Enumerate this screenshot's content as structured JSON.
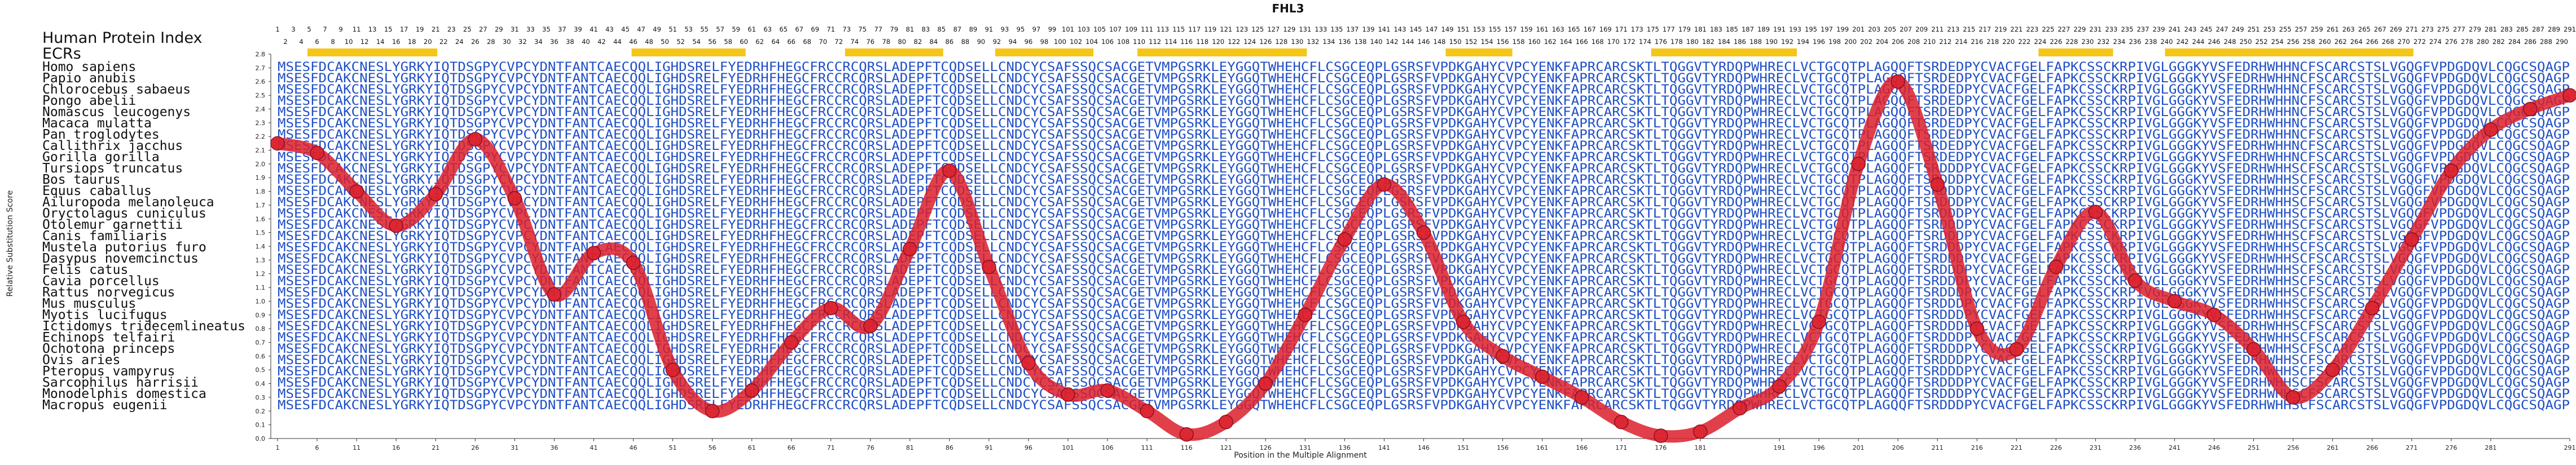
{
  "chart_data": {
    "type": "line",
    "title": "FHL3",
    "xlabel": "Position in the Multiple Alignment",
    "ylabel": "Relative Substitution Score",
    "xlim": [
      1,
      291
    ],
    "ylim": [
      0,
      2.8
    ],
    "yticks": [
      "0.0",
      "0.1",
      "0.2",
      "0.3",
      "0.4",
      "0.5",
      "0.6",
      "0.7",
      "0.8",
      "0.9",
      "1.0",
      "1.1",
      "1.2",
      "1.3",
      "1.4",
      "1.5",
      "1.6",
      "1.7",
      "1.8",
      "1.9",
      "2.0",
      "2.1",
      "2.2",
      "2.3",
      "2.4",
      "2.5",
      "2.6",
      "2.7",
      "2.8"
    ],
    "xticks": [
      "1",
      "6",
      "11",
      "16",
      "21",
      "26",
      "31",
      "36",
      "41",
      "46",
      "51",
      "56",
      "61",
      "66",
      "71",
      "76",
      "81",
      "86",
      "91",
      "96",
      "101",
      "106",
      "111",
      "116",
      "121",
      "126",
      "131",
      "136",
      "141",
      "146",
      "151",
      "156",
      "161",
      "166",
      "171",
      "176",
      "181",
      "191",
      "196",
      "201",
      "206",
      "211",
      "216",
      "221",
      "226",
      "231",
      "236",
      "241",
      "246",
      "251",
      "256",
      "261",
      "266",
      "271",
      "276",
      "281",
      "291"
    ],
    "header_label": "Human Protein Index",
    "ecr_label": "ECRs",
    "species": [
      "Homo sapiens",
      "Papio anubis",
      "Chlorocebus sabaeus",
      "Pongo abelii",
      "Nomascus leucogenys",
      "Macaca mulatta",
      "Pan troglodytes",
      "Callithrix jacchus",
      "Gorilla gorilla",
      "Tursiops truncatus",
      "Bos taurus",
      "Equus caballus",
      "Ailuropoda melanoleuca",
      "Oryctolagus cuniculus",
      "Otolemur garnettii",
      "Canis familiaris",
      "Mustela putorius furo",
      "Dasypus novemcinctus",
      "Felis catus",
      "Cavia porcellus",
      "Rattus norvegicus",
      "Mus musculus",
      "Myotis lucifugus",
      "Ictidomys tridecemlineatus",
      "Echinops telfairi",
      "Ochotona princeps",
      "Ovis aries",
      "Pteropus vampyrus",
      "Sarcophilus harrisii",
      "Monodelphis domestica",
      "Macropus eugenii"
    ],
    "sequences": [
      "MSESFDCAKCNESLYGRKYIQTDSGPYCVPCYDNTFANTCAECQQLIGHDSRELFYEDRHFHEGCFRCCRCQRSLADEPFTCQDSELLCNDCYCSAFSSQCSACGETVMPGSRKLEYGGQTWHEHCFLCSGCEQPLGSRSFVPDKGAHYCVPCYENKFAPRCARCSKTLTQGGVTYRDQPWHRECLVCTGCQTPLAGQQFTSRDEDPYCVACFGELFAPKCSSCKRPIVGLGGGKYVSFEDRHWHHNCFSCARCSTSLVGQGFVPDGDQVLCQGCSQAGP",
      "MSESFDCAKCNESLYGRKYIQTDSGPYCVPCYDNTFANTCAECQQLIGHDSRELFYEDRHFHEGCFRCCRCQRSLADEPFTCQDSELLCNDCYCSAFSSQCSACGETVMPGSRKLEYGGQTWHEHCFLCSGCEQPLGSRSFVPDKGAHYCVPCYENKFAPRCARCSKTLTQGGVTYRDQPWHRECLVCTGCQTPLAGQQFTSRDEDPYCVACFGELFAPKCSSCKRPIVGLGGGKYVSFEDRHWHHNCFSCARCSTSLVGQGFVPDGDQVLCQGCSQAGP",
      "MSESFDCAKCNESLYGRKYIQTDSGPYCVPCYDNTFANTCAECQQLIGHDSRELFYEDRHFHEGCFRCCRCQRSLADEPFTCQDSELLCNDCYCSAFSSQCSACGETVMPGSRKLEYGGQTWHEHCFLCSGCEQPLGSRSFVPDKGAHYCVPCYENKFAPRCARCSKTLTQGGVTYRDQPWHRECLVCTGCQTPLAGQQFTSRDEDPYCVACFGELFAPKCSSCKRPIVGLGGGKYVSFEDRHWHHNCFSCARCSTSLVGQGFVPDGDQVLCQGCSQAGP",
      "MSESFDCAKCNESLYGRKYIQTDSGPYCVPCYDNTFANTCAECQQLIGHDSRELFYEDRHFHEGCFRCCRCQRSLADEPFTCQDSELLCNDCYCSAFSSQCSACGETVMPGSRKLEYGGQTWHEHCFLCSGCEQPLGSRSFVPDKGAHYCVPCYENKFAPRCARCSKTLTQGGVTYRDQPWHRECLVCTGCQTPLAGQQFTSRDEDPYCVACFGELFAPKCSSCKRPIVGLGGGKYVSFEDRHWHHNCFSCARCSTSLVGQGFVPDGDQVLCQGCSQAGP",
      "MSESFDCAKCNESLYGRKYIQTDSGPYCVPCYDNTFANTCAECQQLIGHDSRELFYEDRHFHEGCFRCCRCQRSLADEPFTCQDSELLCNDCYCSAFSSQCSACGETVMPGSRKLEYGGQTWHEHCFLCSGCEQPLGSRSFVPDKGAHYCVPCYENKFAPRCARCSKTLTQGGVTYRDQPWHRECLVCTGCQTPLAGQQFTSRDEDPYCVACFGELFAPKCSSCKRPIVGLGGGKYVSFEDRHWHHNCFSCARCSTSLVGQGFVPDGDQVLCQGCSQAGP",
      "MSESFDCAKCNESLYGRKYIQTDSGPYCVPCYDNTFANTCAECQQLIGHDSRELFYEDRHFHEGCFRCCRCQRSLADEPFTCQDSELLCNDCYCSAFSSQCSACGETVMPGSRKLEYGGQTWHEHCFLCSGCEQPLGSRSFVPDKGAHYCVPCYENKFAPRCARCSKTLTQGGVTYRDQPWHRECLVCTGCQTPLAGQQFTSRDEDPYCVACFGELFAPKCSSCKRPIVGLGGGKYVSFEDRHWHHNCFSCARCSTSLVGQGFVPDGDQVLCQGCSQAGP",
      "MSESFDCAKCNESLYGRKYIQTDSGPYCVPCYDNTFANTCAECQQLIGHDSRELFYEDRHFHEGCFRCCRCQRSLADEPFTCQDSELLCNDCYCSAFSSQCSACGETVMPGSRKLEYGGQTWHEHCFLCSGCEQPLGSRSFVPDKGAHYCVPCYENKFAPRCARCSKTLTQGGVTYRDQPWHRECLVCTGCQTPLAGQQFTSRDEDPYCVACFGELFAPKCSSCKRPIVGLGGGKYVSFEDRHWHHNCFSCARCSTSLVGQGFVPDGDQVLCQGCSQAGP",
      "MSESFDCAKCNESLYGRKYIQTDSGPYCVPCYDNTFANTCAECQQLIGHDSRELFYEDRHFHEGCFRCCRCQRSLADEPFTCQDSELLCNDCYCSAFSSQCSACGETVMPGSRKLEYGGQTWHEHCFLCSGCEQPLGSRSFVPDKGAHYCVPCYENKFAPRCARCSKTLTQGGVTYRDQPWHRECLVCTGCQTPLAGQQFTSRDEDPYCVACFGELFAPKCSSCKRPIVGLGGGKYVSFEDRHWHHNCFSCARCSTSLVGQGFVPDGDQVLCQGCSQAGP",
      "MSESFDCAKCNESLYGRKYIQTDSGPYCVPCYDNTFANTCAECQQLIGHDSRELFYEDRHFHEGCFRCCRCQRSLADEPFTCQDSELLCNDCYCSAFSSQCSACGETVMPGSRKLEYGGQTWHEHCFLCSGCEQPLGSRSFVPDKGAHYCVPCYENKFAPRCARCSKTLTQGGVTYRDQPWHRECLVCTGCQTPLAGQQFTSRDEDPYCVACFGELFAPKCSSCKRPIVGLGGGKYVSFEDRHWHHNCFSCARCSTSLVGQGFVPDGDQVLCQGCSQAGP",
      "MSESFDCAKCNESLYGRKYIQTDSGPYCVPCYDNTFANTCAECQQLIGHDSRELFYEDRHFHEGCFRCCRCQRSLADEPFTCQDSELLCNDCYCSAFSSQCSACGETVMPGSRKLEYGGQTWHEHCFLCSGCEQPLGSRSFVPDKGAHYCVPCYENKFAPRCARCSKTLTQGGVTYRDQPWHRECLVCTGCQTPLAGQQFTSRDDDPYCVACFGELFAPKCSSCKRPIVGLGGGKYVSFEDRHWHHSCFSCARCSTSLVGQGFVPDGDQVLCQGCSQAGP",
      "MSESFDCAKCNESLYGRKYIQTDSGPYCVPCYDNTFANTCAECQQLIGHDSRELFYEDRHFHEGCFRCCRCQRSLADEPFTCQDSELLCNDCYCSAFSSQCSACGETVMPGSRKLEYGGQTWHEHCFLCSGCEQPLGSRSFVPDKGAHYCVPCYENKFAPRCARCSKTLTQGGVTYRDQPWHRECLVCTGCQTPLAGQQFTSRDDDPYCVACFGELFAPKCSSCKRPIVGLGGGKYVSFEDRHWHHSCFSCARCSTSLVGQGFVPDGDQVLCQGCSQAGP",
      "MSESFDCAKCNESLYGRKYIQTDSGPYCVPCYDNTFANTCAECQQLIGHDSRELFYEDRHFHEGCFRCCRCQRSLADEPFTCQDSELLCNDCYCSAFSSQCSACGETVMPGSRKLEYGGQTWHEHCFLCSGCEQPLGSRSFVPDKGAHYCVPCYENKFAPRCARCSKTLTQGGVTYRDQPWHRECLVCTGCQTPLAGQQFTSRDDDPYCVACFGELFAPKCSSCKRPIVGLGGGKYVSFEDRHWHHSCFSCARCSTSLVGQGFVPDGDQVLCQGCSQAGP",
      "MSESFDCAKCNESLYGRKYIQTDSGPYCVPCYDNTFANTCAECQQLIGHDSRELFYEDRHFHEGCFRCCRCQRSLADEPFTCQDSELLCNDCYCSAFSSQCSACGETVMPGSRKLEYGGQTWHEHCFLCSGCEQPLGSRSFVPDKGAHYCVPCYENKFAPRCARCSKTLTQGGVTYRDQPWHRECLVCTGCQTPLAGQQFTSRDDDPYCVACFGELFAPKCSSCKRPIVGLGGGKYVSFEDRHWHHSCFSCARCSTSLVGQGFVPDGDQVLCQGCSQAGP",
      "MSESFDCAKCNESLYGRKYIQTDSGPYCVPCYDNTFANTCAECQQLIGHDSRELFYEDRHFHEGCFRCCRCQRSLADEPFTCQDSELLCNDCYCSAFSSQCSACGETVMPGSRKLEYGGQTWHEHCFLCSGCEQPLGSRSFVPDKGAHYCVPCYENKFAPRCARCSKTLTQGGVTYRDQPWHRECLVCTGCQTPLAGQQFTSRDDDPYCVACFGELFAPKCSSCKRPIVGLGGGKYVSFEDRHWHHSCFSCARCSTSLVGQGFVPDGDQVLCQGCSQAGP",
      "MSESFDCAKCNESLYGRKYIQTDSGPYCVPCYDNTFANTCAECQQLIGHDSRELFYEDRHFHEGCFRCCRCQRSLADEPFTCQDSELLCNDCYCSAFSSQCSACGETVMPGSRKLEYGGQTWHEHCFLCSGCEQPLGSRSFVPDKGAHYCVPCYENKFAPRCARCSKTLTQGGVTYRDQPWHRECLVCTGCQTPLAGQQFTSRDDDPYCVACFGELFAPKCSSCKRPIVGLGGGKYVSFEDRHWHHSCFSCARCSTSLVGQGFVPDGDQVLCQGCSQAGP",
      "MSESFDCAKCNESLYGRKYIQTDSGPYCVPCYDNTFANTCAECQQLIGHDSRELFYEDRHFHEGCFRCCRCQRSLADEPFTCQDSELLCNDCYCSAFSSQCSACGETVMPGSRKLEYGGQTWHEHCFLCSGCEQPLGSRSFVPDKGAHYCVPCYENKFAPRCARCSKTLTQGGVTYRDQPWHRECLVCTGCQTPLAGQQFTSRDDDPYCVACFGELFAPKCSSCKRPIVGLGGGKYVSFEDRHWHHSCFSCARCSTSLVGQGFVPDGDQVLCQGCSQAGP",
      "MSESFDCAKCNESLYGRKYIQTDSGPYCVPCYDNTFANTCAECQQLIGHDSRELFYEDRHFHEGCFRCCRCQRSLADEPFTCQDSELLCNDCYCSAFSSQCSACGETVMPGSRKLEYGGQTWHEHCFLCSGCEQPLGSRSFVPDKGAHYCVPCYENKFAPRCARCSKTLTQGGVTYRDQPWHRECLVCTGCQTPLAGQQFTSRDDDPYCVACFGELFAPKCSSCKRPIVGLGGGKYVSFEDRHWHHSCFSCARCSTSLVGQGFVPDGDQVLCQGCSQAGP",
      "MSESFDCAKCNESLYGRKYIQTDSGPYCVPCYDNTFANTCAECQQLIGHDSRELFYEDRHFHEGCFRCCRCQRSLADEPFTCQDSELLCNDCYCSAFSSQCSACGETVMPGSRKLEYGGQTWHEHCFLCSGCEQPLGSRSFVPDKGAHYCVPCYENKFAPRCARCSKTLTQGGVTYRDQPWHRECLVCTGCQTPLAGQQFTSRDDDPYCVACFGELFAPKCSSCKRPIVGLGGGKYVSFEDRHWHHSCFSCARCSTSLVGQGFVPDGDQVLCQGCSQAGP",
      "MSESFDCAKCNESLYGRKYIQTDSGPYCVPCYDNTFANTCAECQQLIGHDSRELFYEDRHFHEGCFRCCRCQRSLADEPFTCQDSELLCNDCYCSAFSSQCSACGETVMPGSRKLEYGGQTWHEHCFLCSGCEQPLGSRSFVPDKGAHYCVPCYENKFAPRCARCSKTLTQGGVTYRDQPWHRECLVCTGCQTPLAGQQFTSRDDDPYCVACFGELFAPKCSSCKRPIVGLGGGKYVSFEDRHWHHSCFSCARCSTSLVGQGFVPDGDQVLCQGCSQAGP",
      "MSESFDCAKCNESLYGRKYIQTDSGPYCVPCYDNTFANTCAECQQLIGHDSRELFYEDRHFHEGCFRCCRCQRSLADEPFTCQDSELLCNDCYCSAFSSQCSACGETVMPGSRKLEYGGQTWHEHCFLCSGCEQPLGSRSFVPDKGAHYCVPCYENKFAPRCARCSKTLTQGGVTYRDQPWHRECLVCTGCQTPLAGQQFTSRDDDPYCVACFGELFAPKCSSCKRPIVGLGGGKYVSFEDRHWHHSCFSCARCSTSLVGQGFVPDGDQVLCQGCSQAGP",
      "MSESFDCAKCNESLYGRKYIQTDSGPYCVPCYDNTFANTCAECQQLIGHDSRELFYEDRHFHEGCFRCCRCQRSLADEPFTCQDSELLCNDCYCSAFSSQCSACGETVMPGSRKLEYGGQTWHEHCFLCSGCEQPLGSRSFVPDKGAHYCVPCYENKFAPRCARCSKTLTQGGVTYRDQPWHRECLVCTGCQTPLAGQQFTSRDDDPYCVACFGELFAPKCSSCKRPIVGLGGGKYVSFEDRHWHHSCFSCARCSTSLVGQGFVPDGDQVLCQGCSQAGP",
      "MSESFDCAKCNESLYGRKYIQTDSGPYCVPCYDNTFANTCAECQQLIGHDSRELFYEDRHFHEGCFRCCRCQRSLADEPFTCQDSELLCNDCYCSAFSSQCSACGETVMPGSRKLEYGGQTWHEHCFLCSGCEQPLGSRSFVPDKGAHYCVPCYENKFAPRCARCSKTLTQGGVTYRDQPWHRECLVCTGCQTPLAGQQFTSRDDDPYCVACFGELFAPKCSSCKRPIVGLGGGKYVSFEDRHWHHSCFSCARCSTSLVGQGFVPDGDQVLCQGCSQAGP",
      "MSESFDCAKCNESLYGRKYIQTDSGPYCVPCYDNTFANTCAECQQLIGHDSRELFYEDRHFHEGCFRCCRCQRSLADEPFTCQDSELLCNDCYCSAFSSQCSACGETVMPGSRKLEYGGQTWHEHCFLCSGCEQPLGSRSFVPDKGAHYCVPCYENKFAPRCARCSKTLTQGGVTYRDQPWHRECLVCTGCQTPLAGQQFTSRDDDPYCVACFGELFAPKCSSCKRPIVGLGGGKYVSFEDRHWHHSCFSCARCSTSLVGQGFVPDGDQVLCQGCSQAGP",
      "MSESFDCAKCNESLYGRKYIQTDSGPYCVPCYDNTFANTCAECQQLIGHDSRELFYEDRHFHEGCFRCCRCQRSLADEPFTCQDSELLCNDCYCSAFSSQCSACGETVMPGSRKLEYGGQTWHEHCFLCSGCEQPLGSRSFVPDKGAHYCVPCYENKFAPRCARCSKTLTQGGVTYRDQPWHRECLVCTGCQTPLAGQQFTSRDDDPYCVACFGELFAPKCSSCKRPIVGLGGGKYVSFEDRHWHHSCFSCARCSTSLVGQGFVPDGDQVLCQGCSQAGP",
      "MSESFDCAKCNESLYGRKYIQTDSGPYCVPCYDNTFANTCAECQQLIGHDSRELFYEDRHFHEGCFRCCRCQRSLADEPFTCQDSELLCNDCYCSAFSSQCSACGETVMPGSRKLEYGGQTWHEHCFLCSGCEQPLGSRSFVPDKGAHYCVPCYENKFAPRCARCSKTLTQGGVTYRDQPWHRECLVCTGCQTPLAGQQFTSRDDDPYCVACFGELFAPKCSSCKRPIVGLGGGKYVSFEDRHWHHSCFSCARCSTSLVGQGFVPDGDQVLCQGCSQAGP",
      "MSESFDCAKCNESLYGRKYIQTDSGPYCVPCYDNTFANTCAECQQLIGHDSRELFYEDRHFHEGCFRCCRCQRSLADEPFTCQDSELLCNDCYCSAFSSQCSACGETVMPGSRKLEYGGQTWHEHCFLCSGCEQPLGSRSFVPDKGAHYCVPCYENKFAPRCARCSKTLTQGGVTYRDQPWHRECLVCTGCQTPLAGQQFTSRDDDPYCVACFGELFAPKCSSCKRPIVGLGGGKYVSFEDRHWHHSCFSCARCSTSLVGQGFVPDGDQVLCQGCSQAGP",
      "MSESFDCAKCNESLYGRKYIQTDSGPYCVPCYDNTFANTCAECQQLIGHDSRELFYEDRHFHEGCFRCCRCQRSLADEPFTCQDSELLCNDCYCSAFSSQCSACGETVMPGSRKLEYGGQTWHEHCFLCSGCEQPLGSRSFVPDKGAHYCVPCYENKFAPRCARCSKTLTQGGVTYRDQPWHRECLVCTGCQTPLAGQQFTSRDDDPYCVACFGELFAPKCSSCKRPIVGLGGGKYVSFEDRHWHHSCFSCARCSTSLVGQGFVPDGDQVLCQGCSQAGP",
      "MSESFDCAKCNESLYGRKYIQTDSGPYCVPCYDNTFANTCAECQQLIGHDSRELFYEDRHFHEGCFRCCRCQRSLADEPFTCQDSELLCNDCYCSAFSSQCSACGETVMPGSRKLEYGGQTWHEHCFLCSGCEQPLGSRSFVPDKGAHYCVPCYENKFAPRCARCSKTLTQGGVTYRDQPWHRECLVCTGCQTPLAGQQFTSRDDDPYCVACFGELFAPKCSSCKRPIVGLGGGKYVSFEDRHWHHSCFSCARCSTSLVGQGFVPDGDQVLCQGCSQAGP",
      "MSESFDCAKCNESLYGRKYIQTDSGPYCVPCYDNTFANTCAECQQLIGHDSRELFYEDRHFHEGCFRCCRCQRSLADEPFTCQDSELLCNDCYCSAFSSQCSACGETVMPGSRKLEYGGQTWHEHCFLCSGCEQPLGSRSFVPDKGAHYCVPCYENKFAPRCARCSKTLTQGGVTYRDQPWHRECLVCTGCQTPLAGQQFTSRDDDPYCVACFGELFAPKCSSCKRPIVGLGGGKYVSFEDRHWHHSCFSCARCSTSLVGQGFVPDGDQVLCQGCSQAGP",
      "MSESFDCAKCNESLYGRKYIQTDSGPYCVPCYDNTFANTCAECQQLIGHDSRELFYEDRHFHEGCFRCCRCQRSLADEPFTCQDSELLCNDCYCSAFSSQCSACGETVMPGSRKLEYGGQTWHEHCFLCSGCEQPLGSRSFVPDKGAHYCVPCYENKFAPRCARCSKTLTQGGVTYRDQPWHRECLVCTGCQTPLAGQQFTSRDDDPYCVACFGELFAPKCSSCKRPIVGLGGGKYVSFEDRHWHHSCFSCARCSTSLVGQGFVPDGDQVLCQGCSQAGP",
      "MSESFDCAKCNESLYGRKYIQTDSGPYCVPCYDNTFANTCAECQQLIGHDSRELFYEDRHFHEGCFRCCRCQRSLADEPFTCQDSELLCNDCYCSAFSSQCSACGETVMPGSRKLEYGGQTWHEHCFLCSGCEQPLGSRSFVPDKGAHYCVPCYENKFAPRCARCSKTLTQGGVTYRDQPWHRECLVCTGCQTPLAGQQFTSRDDDPYCVACFGELFAPKCSSCKRPIVGLGGGKYVSFEDRHWHHSCFSCARCSTSLVGQGFVPDGDQVLCQGCSQAGP"
    ],
    "ecrs": [
      [
        5,
        21
      ],
      [
        46,
        60
      ],
      [
        73,
        85
      ],
      [
        92,
        104
      ],
      [
        110,
        131
      ],
      [
        149,
        157
      ],
      [
        175,
        193
      ],
      [
        224,
        233
      ],
      [
        240,
        271
      ]
    ],
    "series": [
      {
        "color": "#dc1e2a",
        "x": [
          1,
          6,
          11,
          16,
          21,
          26,
          31,
          36,
          41,
          46,
          51,
          56,
          61,
          66,
          71,
          76,
          81,
          86,
          91,
          96,
          101,
          106,
          111,
          116,
          121,
          126,
          131,
          136,
          141,
          146,
          151,
          156,
          161,
          166,
          171,
          176,
          181,
          186,
          191,
          196,
          201,
          206,
          211,
          216,
          221,
          226,
          231,
          236,
          241,
          246,
          251,
          256,
          261,
          266,
          271,
          276,
          281,
          286,
          291
        ],
        "values": [
          2.15,
          2.08,
          1.8,
          1.55,
          1.78,
          2.18,
          1.75,
          1.05,
          1.35,
          1.28,
          0.5,
          0.2,
          0.35,
          0.7,
          0.95,
          0.82,
          1.38,
          1.95,
          1.25,
          0.55,
          0.32,
          0.35,
          0.2,
          0.03,
          0.12,
          0.4,
          0.9,
          1.45,
          1.85,
          1.5,
          0.85,
          0.6,
          0.45,
          0.3,
          0.12,
          0.02,
          0.05,
          0.22,
          0.38,
          0.85,
          2.0,
          2.6,
          1.85,
          0.8,
          0.65,
          1.25,
          1.65,
          1.15,
          1.0,
          0.9,
          0.65,
          0.3,
          0.5,
          0.95,
          1.45,
          1.95,
          2.25,
          2.4,
          2.5
        ]
      }
    ]
  }
}
